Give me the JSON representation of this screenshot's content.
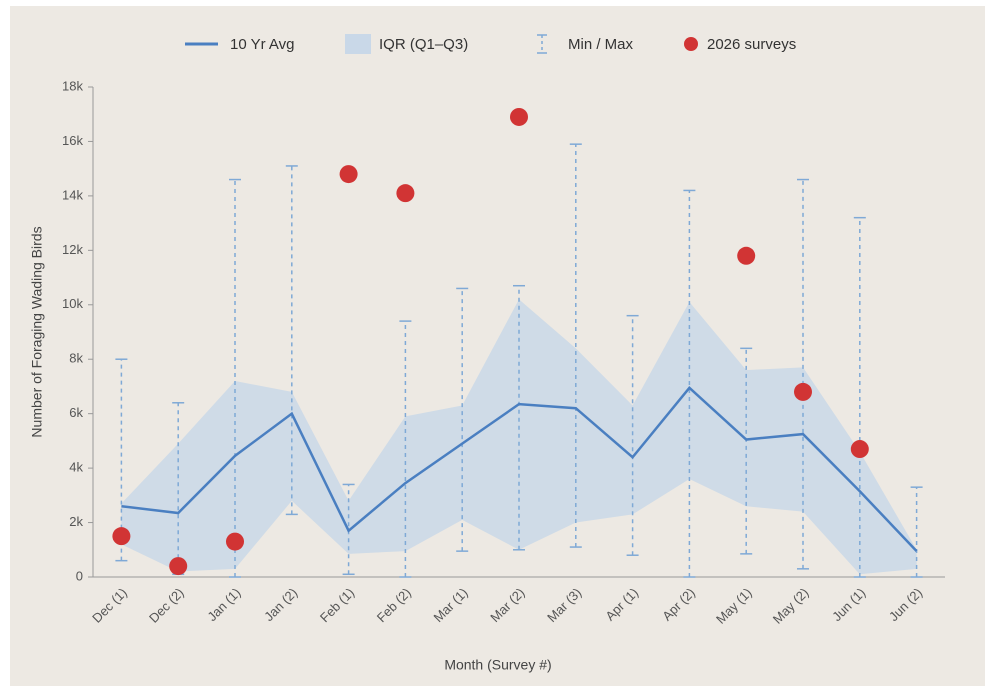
{
  "chart_data": {
    "type": "line",
    "xlabel": "Month (Survey #)",
    "ylabel": "Number of Foraging Wading Birds",
    "categories": [
      "Dec (1)",
      "Dec (2)",
      "Jan (1)",
      "Jan (2)",
      "Feb (1)",
      "Feb (2)",
      "Mar (1)",
      "Mar (2)",
      "Mar (3)",
      "Apr (1)",
      "Apr (2)",
      "May (1)",
      "May (2)",
      "Jun (1)",
      "Jun (2)"
    ],
    "average": {
      "name": "10 Yr Avg",
      "color": "#4a7fc1",
      "values": [
        2600,
        2350,
        4450,
        6000,
        1700,
        3450,
        4900,
        6350,
        6200,
        4400,
        6950,
        5050,
        5250,
        3150,
        950
      ]
    },
    "iqr": {
      "name": "IQR (Q1–Q3)",
      "color": "#c9d8e8",
      "q1": [
        1200,
        200,
        300,
        2800,
        850,
        950,
        2100,
        1000,
        2000,
        2300,
        3600,
        2600,
        2400,
        100,
        300
      ],
      "q3": [
        2700,
        4900,
        7200,
        6800,
        2800,
        5900,
        6300,
        10200,
        8400,
        6300,
        10100,
        7600,
        7700,
        4600,
        1000
      ]
    },
    "range": {
      "name": "Min / Max",
      "color": "#7fa9d6",
      "min": [
        600,
        100,
        0,
        2300,
        100,
        0,
        950,
        1000,
        1100,
        800,
        0,
        850,
        300,
        0,
        0
      ],
      "max": [
        8000,
        6400,
        14600,
        15100,
        3400,
        9400,
        10600,
        10700,
        15900,
        9600,
        14200,
        8400,
        14600,
        13200,
        3300
      ]
    },
    "surveys": {
      "name": "2026 surveys",
      "color": "#d13434",
      "values": [
        1500,
        400,
        1300,
        null,
        14800,
        14100,
        null,
        16900,
        null,
        null,
        null,
        11800,
        6800,
        4700,
        null
      ]
    },
    "ylim": [
      0,
      18000
    ],
    "yticks": [
      0,
      {
        "value": 2000,
        "label": "2k"
      },
      {
        "value": 4000,
        "label": "4k"
      },
      {
        "value": 6000,
        "label": "6k"
      },
      {
        "value": 8000,
        "label": "8k"
      },
      {
        "value": 10000,
        "label": "10k"
      },
      {
        "value": 12000,
        "label": "12k"
      },
      {
        "value": 14000,
        "label": "14k"
      },
      {
        "value": 16000,
        "label": "16k"
      },
      {
        "value": 18000,
        "label": "18k"
      }
    ]
  }
}
